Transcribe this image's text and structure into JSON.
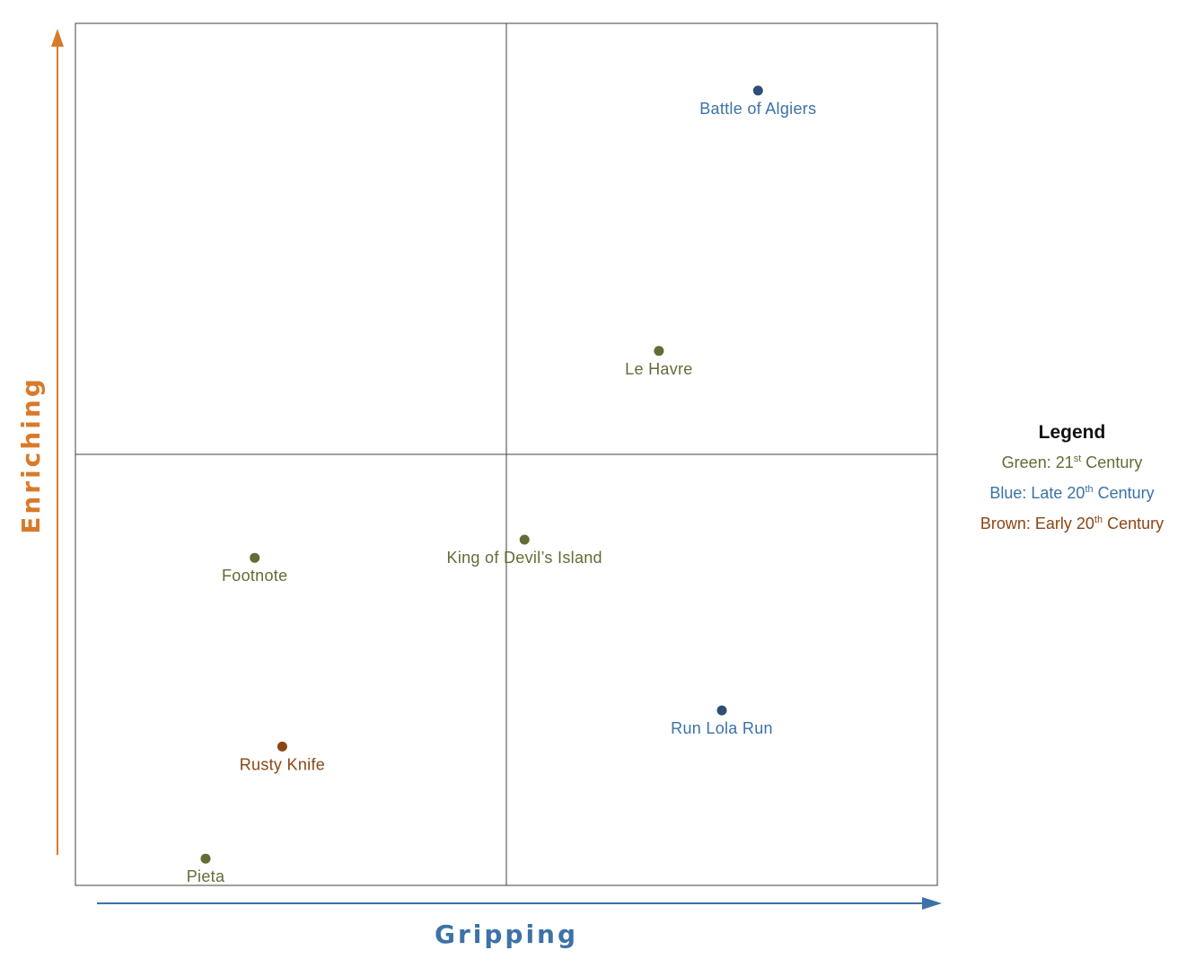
{
  "chart_data": {
    "type": "scatter",
    "title": "",
    "xlabel": "Gripping",
    "ylabel": "Enriching",
    "xlim": [
      0,
      100
    ],
    "ylim": [
      0,
      100
    ],
    "grid": false,
    "quadrant_dividers": {
      "x": 50,
      "y": 50
    },
    "colors": {
      "green": "#5f6e34",
      "blue": "#2e4d74",
      "brown": "#8b4513",
      "green_text": "#5f6e34",
      "blue_text": "#3c72a8",
      "brown_text": "#8b4513",
      "x_axis": "#3c72a8",
      "y_axis": "#d97a2b"
    },
    "points": [
      {
        "label": "Battle of Algiers",
        "x": 79.2,
        "y": 92.2,
        "group": "blue"
      },
      {
        "label": "Le Havre",
        "x": 67.7,
        "y": 62.0,
        "group": "green"
      },
      {
        "label": "King of Devil’s Island",
        "x": 52.1,
        "y": 40.1,
        "group": "green"
      },
      {
        "label": "Footnote",
        "x": 20.8,
        "y": 38.0,
        "group": "green"
      },
      {
        "label": "Run Lola Run",
        "x": 75.0,
        "y": 20.3,
        "group": "blue"
      },
      {
        "label": "Rusty Knife",
        "x": 24.0,
        "y": 16.1,
        "group": "brown"
      },
      {
        "label": "Pieta",
        "x": 15.1,
        "y": 3.1,
        "group": "green"
      }
    ],
    "legend": {
      "title": "Legend",
      "placement": "right",
      "items": [
        {
          "prefix": "Green: 21",
          "sup": "st",
          "suffix": " Century",
          "group": "green"
        },
        {
          "prefix": "Blue: Late 20",
          "sup": "th",
          "suffix": " Century",
          "group": "blue"
        },
        {
          "prefix": "Brown: Early 20",
          "sup": "th",
          "suffix": " Century",
          "group": "brown"
        }
      ]
    }
  }
}
